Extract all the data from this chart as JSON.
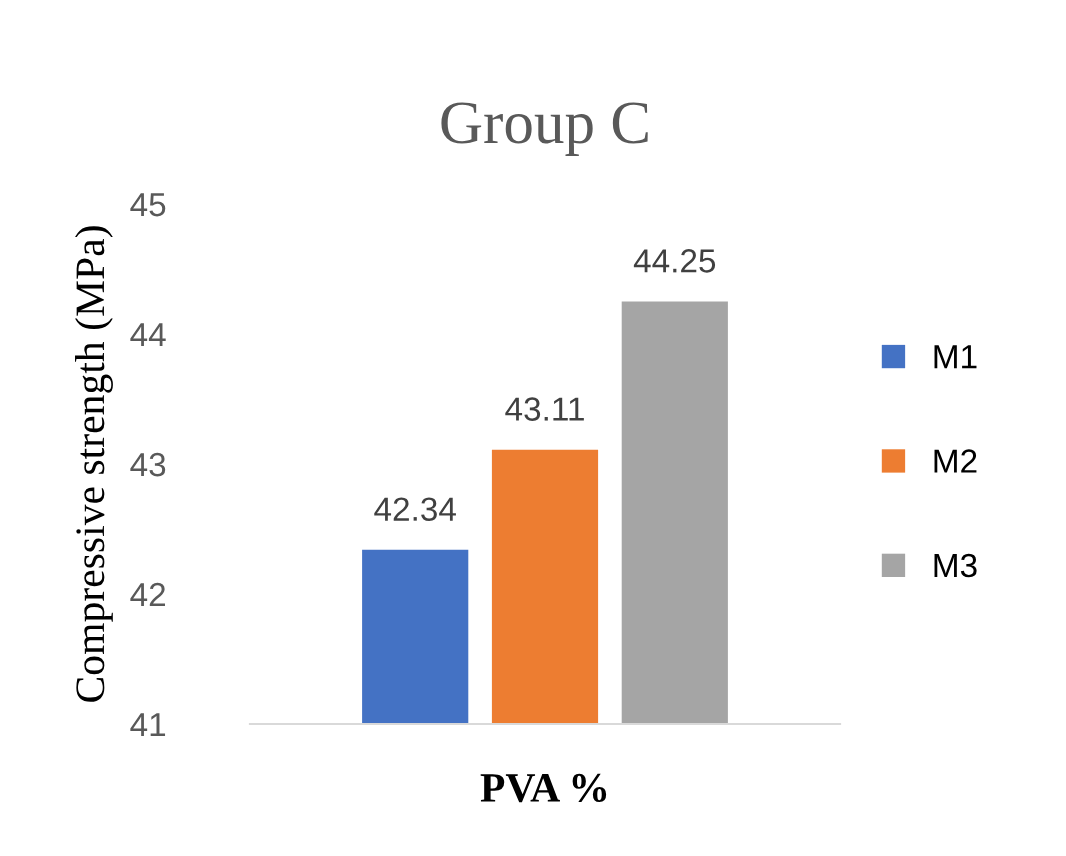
{
  "chart_data": {
    "type": "bar",
    "title": "Group C",
    "xlabel": "PVA %",
    "ylabel": "Compressive strength (MPa)",
    "categories": [
      null
    ],
    "series": [
      {
        "name": "M1",
        "color": "#4472c4",
        "values": [
          42.34
        ]
      },
      {
        "name": "M2",
        "color": "#ed7d31",
        "values": [
          43.11
        ]
      },
      {
        "name": "M3",
        "color": "#a5a5a5",
        "values": [
          44.25
        ]
      }
    ],
    "ylim": [
      41,
      45
    ],
    "yticks": [
      41,
      42,
      43,
      44,
      45
    ],
    "grid": false,
    "legend": "right",
    "data_labels": true
  }
}
